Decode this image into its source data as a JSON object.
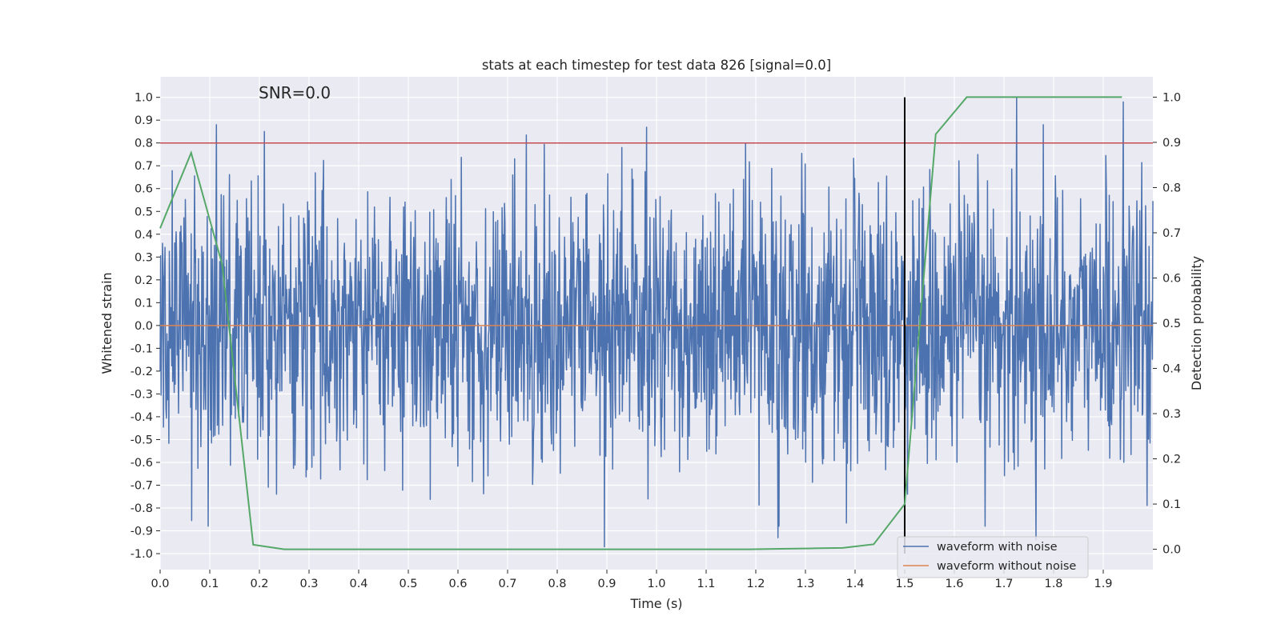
{
  "chart_data": {
    "type": "line",
    "title": "stats at each timestep for test data 826 [signal=0.0]",
    "xlabel": "Time (s)",
    "ylabel": "Whitened strain",
    "y2label": "Detection probability",
    "xlim": [
      0,
      2.0
    ],
    "ylim": [
      -1.07,
      1.09
    ],
    "y2lim": [
      -0.045,
      1.045
    ],
    "xticks": [
      0.0,
      0.1,
      0.2,
      0.3,
      0.4,
      0.5,
      0.6,
      0.7,
      0.8,
      0.9,
      1.0,
      1.1,
      1.2,
      1.3,
      1.4,
      1.5,
      1.6,
      1.7,
      1.8,
      1.9
    ],
    "yticks": [
      1.0,
      0.9,
      0.8,
      0.7,
      0.6,
      0.5,
      0.4,
      0.3,
      0.2,
      0.1,
      0.0,
      -0.1,
      -0.2,
      -0.3,
      -0.4,
      -0.5,
      -0.6,
      -0.7,
      -0.8,
      -0.9,
      -1.0
    ],
    "y2ticks": [
      1.0,
      0.9,
      0.8,
      0.7,
      0.6,
      0.5,
      0.4,
      0.3,
      0.2,
      0.1,
      0.0
    ],
    "grid": true,
    "legend_position": "lower-right",
    "annotation": "SNR=0.0",
    "threshold_line": {
      "y": 0.8,
      "color": "#c44e52"
    },
    "marker_line": {
      "x": 1.5,
      "y_from": -1.0,
      "y_to": 1.0,
      "color": "#000000"
    },
    "series": [
      {
        "name": "waveform with noise",
        "color": "#4c72b0",
        "x_range": [
          0.0,
          2.0
        ],
        "num_points": 2048,
        "amplitude_estimate": 0.35,
        "peaks": [
          {
            "x": 0.21,
            "y": 0.85
          },
          {
            "x": 0.93,
            "y": 0.78
          },
          {
            "x": 1.725,
            "y": 1.0
          },
          {
            "x": 1.94,
            "y": 0.98
          },
          {
            "x": 0.895,
            "y": -0.97
          },
          {
            "x": 1.245,
            "y": -0.93
          },
          {
            "x": 1.765,
            "y": -0.94
          }
        ]
      },
      {
        "name": "waveform without noise",
        "color": "#dd8452",
        "x": [
          0.0,
          2.0
        ],
        "y": [
          0.0,
          0.0
        ]
      },
      {
        "name": "",
        "axis": "right",
        "color": "#55a868",
        "x": [
          0.0,
          0.0625,
          0.125,
          0.1875,
          0.25,
          0.3125,
          0.375,
          0.4375,
          0.5,
          0.5625,
          0.625,
          0.6875,
          0.75,
          0.8125,
          0.875,
          0.9375,
          1.0,
          1.0625,
          1.125,
          1.1875,
          1.25,
          1.3125,
          1.375,
          1.4375,
          1.5,
          1.5625,
          1.625,
          1.6875,
          1.75,
          1.8125,
          1.875,
          1.9375
        ],
        "y": [
          0.71,
          0.877,
          0.63,
          0.01,
          0.0,
          0.0,
          0.0,
          0.0,
          0.0,
          0.0,
          0.0,
          0.0,
          0.0,
          0.0,
          0.0,
          0.0,
          0.0,
          0.0,
          0.0,
          0.0,
          0.001,
          0.002,
          0.003,
          0.011,
          0.1,
          0.918,
          1.0,
          1.0,
          1.0,
          1.0,
          1.0,
          1.0
        ]
      }
    ]
  }
}
